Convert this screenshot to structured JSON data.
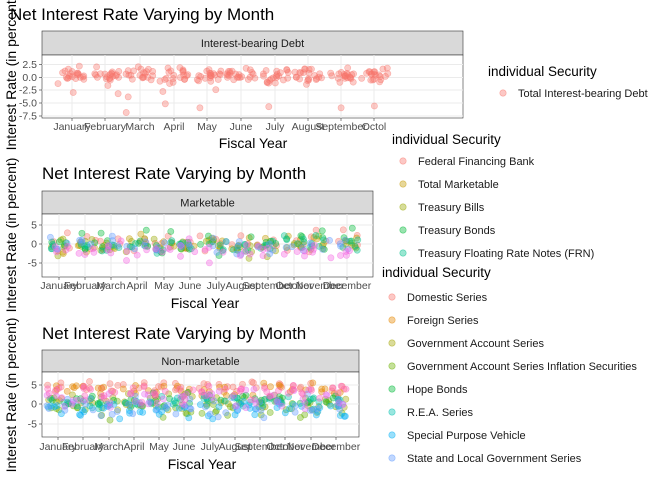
{
  "chart_data": [
    {
      "type": "scatter",
      "title": "Net Interest Rate Varying by Month",
      "facet": "Interest-bearing Debt",
      "xlabel": "Fiscal Year",
      "ylabel": "Interest Rate (in percent)",
      "categories": [
        "January",
        "February",
        "March",
        "April",
        "May",
        "June",
        "July",
        "August",
        "September",
        "Octol"
      ],
      "ytick_labels": [
        "2.5",
        "0.0",
        "-2.5",
        "-5.0",
        "-7.5"
      ],
      "ylim": [
        -8,
        5
      ],
      "legend_title": "individual Security",
      "series": [
        {
          "name": "Total Interest-bearing Debt",
          "color": "#F8766D",
          "points_per_month": 22,
          "center": 0.8,
          "spread": 1.7,
          "outliers": [
            -3.0,
            -6.0
          ]
        }
      ]
    },
    {
      "type": "scatter",
      "title": "Net Interest Rate Varying by Month",
      "facet": "Marketable",
      "xlabel": "Fiscal Year",
      "ylabel": "Interest Rate (in percent)",
      "categories": [
        "January",
        "February",
        "March",
        "April",
        "May",
        "June",
        "July",
        "August",
        "September",
        "October",
        "November",
        "December"
      ],
      "ytick_labels": [
        "5",
        "0",
        "-5"
      ],
      "ylim": [
        -8,
        8
      ],
      "legend_title": "individual Security",
      "series": [
        {
          "name": "Federal Financing Bank",
          "color": "#F8766D",
          "center": 0.5,
          "spread": 3.0
        },
        {
          "name": "Total Marketable",
          "color": "#C49A00",
          "center": 0.3,
          "spread": 2.5
        },
        {
          "name": "Treasury Bills",
          "color": "#99A800",
          "center": -0.5,
          "spread": 3.0
        },
        {
          "name": "Treasury Bonds",
          "color": "#00BA38",
          "center": 1.0,
          "spread": 3.5
        },
        {
          "name": "Treasury Floating Rate Notes (FRN)",
          "color": "#00C08B",
          "center": 0.0,
          "spread": 2.5
        },
        {
          "name": "",
          "color": "#619CFF",
          "center": 0.0,
          "spread": 2.5
        },
        {
          "name": "",
          "color": "#F564E3",
          "center": -1.5,
          "spread": 3.0
        }
      ]
    },
    {
      "type": "scatter",
      "title": "Net Interest Rate Varying by Month",
      "facet": "Non-marketable",
      "xlabel": "Fiscal Year",
      "ylabel": "Interest Rate (in percent)",
      "categories": [
        "January",
        "February",
        "March",
        "April",
        "May",
        "June",
        "July",
        "August",
        "September",
        "October",
        "November",
        "December"
      ],
      "ytick_labels": [
        "5",
        "0",
        "-5"
      ],
      "ylim": [
        -8,
        8
      ],
      "legend_title": "individual Security",
      "series": [
        {
          "name": "Domestic Series",
          "color": "#F8766D",
          "center": 4.5,
          "spread": 1.5
        },
        {
          "name": "Foreign Series",
          "color": "#E58700",
          "center": 3.5,
          "spread": 2.0
        },
        {
          "name": "Government Account Series",
          "color": "#A3A500",
          "center": 0.5,
          "spread": 2.5
        },
        {
          "name": "Government Account Series Inflation Securities",
          "color": "#6BB100",
          "center": -1.0,
          "spread": 3.0
        },
        {
          "name": "Hope Bonds",
          "color": "#00BA38",
          "center": 1.0,
          "spread": 2.0
        },
        {
          "name": "R.E.A. Series",
          "color": "#00C0AF",
          "center": 0.5,
          "spread": 2.0
        },
        {
          "name": "Special Purpose Vehicle",
          "color": "#00B0F6",
          "center": -1.5,
          "spread": 2.5
        },
        {
          "name": "State and Local Government Series",
          "color": "#619CFF",
          "center": -0.5,
          "spread": 3.0
        },
        {
          "name": "",
          "color": "#E76BF3",
          "center": 1.5,
          "spread": 3.0
        },
        {
          "name": "",
          "color": "#FF62BC",
          "center": 3.0,
          "spread": 2.5
        }
      ]
    }
  ]
}
